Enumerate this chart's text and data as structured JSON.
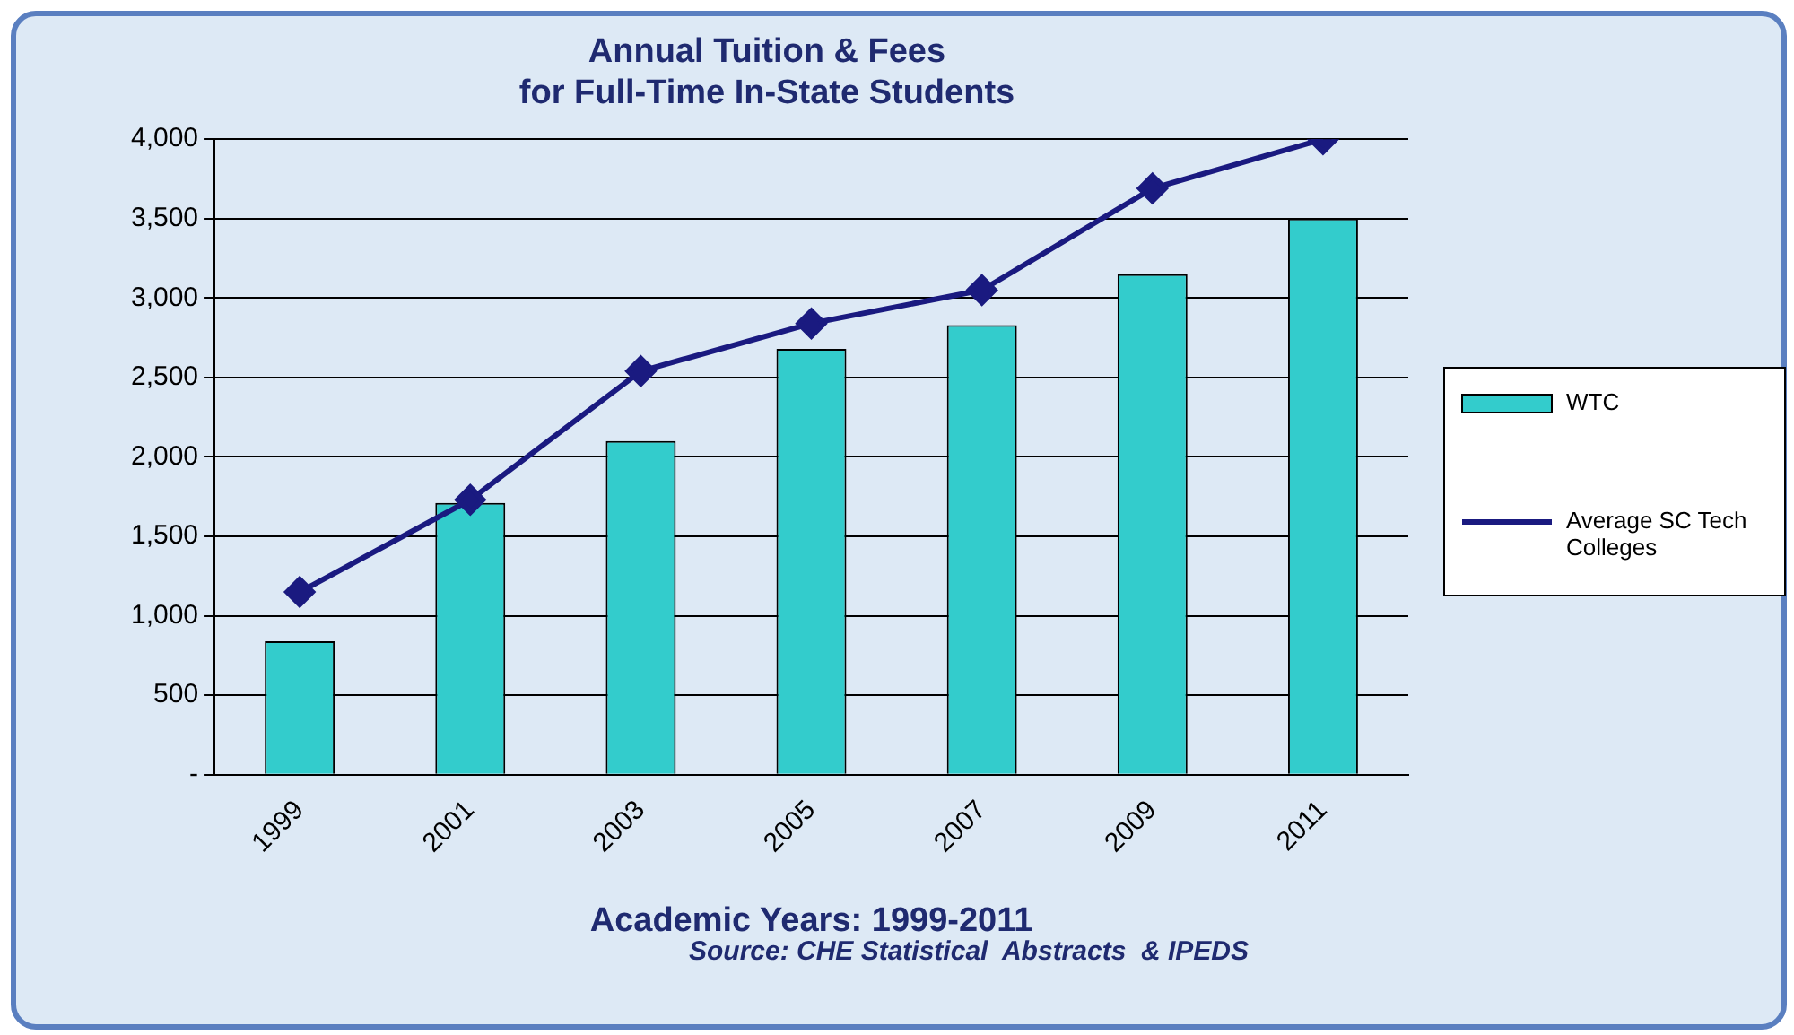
{
  "chart_data": {
    "type": "bar",
    "title": "Annual Tuition & Fees\nfor Full-Time In-State Students",
    "xlabel": "Academic Years: 1999-2011",
    "annotations": [
      "Source: CHE Statistical  Abstracts  & IPEDS"
    ],
    "categories": [
      "1999",
      "2001",
      "2003",
      "2005",
      "2007",
      "2009",
      "2011"
    ],
    "series": [
      {
        "name": "WTC",
        "color": "#33cccc",
        "values": [
          840,
          1710,
          2100,
          2680,
          2830,
          3150,
          3500
        ]
      },
      {
        "name": "Average SC Tech Colleges",
        "type": "line",
        "color": "#1a1a80",
        "marker": "diamond",
        "values": [
          1150,
          1730,
          2540,
          2840,
          3050,
          3690,
          4000
        ]
      }
    ],
    "ylim": [
      0,
      4000
    ],
    "yticks": [
      {
        "value": 0,
        "label": "-"
      },
      500,
      {
        "value": 1000,
        "label": "1,000"
      },
      {
        "value": 1500,
        "label": "1,500"
      },
      {
        "value": 2000,
        "label": "2,000"
      },
      {
        "value": 2500,
        "label": "2,500"
      },
      {
        "value": 3000,
        "label": "3,000"
      },
      {
        "value": 3500,
        "label": "3,500"
      },
      {
        "value": 4000,
        "label": "4,000"
      }
    ],
    "grid": "y",
    "legend": "right"
  }
}
